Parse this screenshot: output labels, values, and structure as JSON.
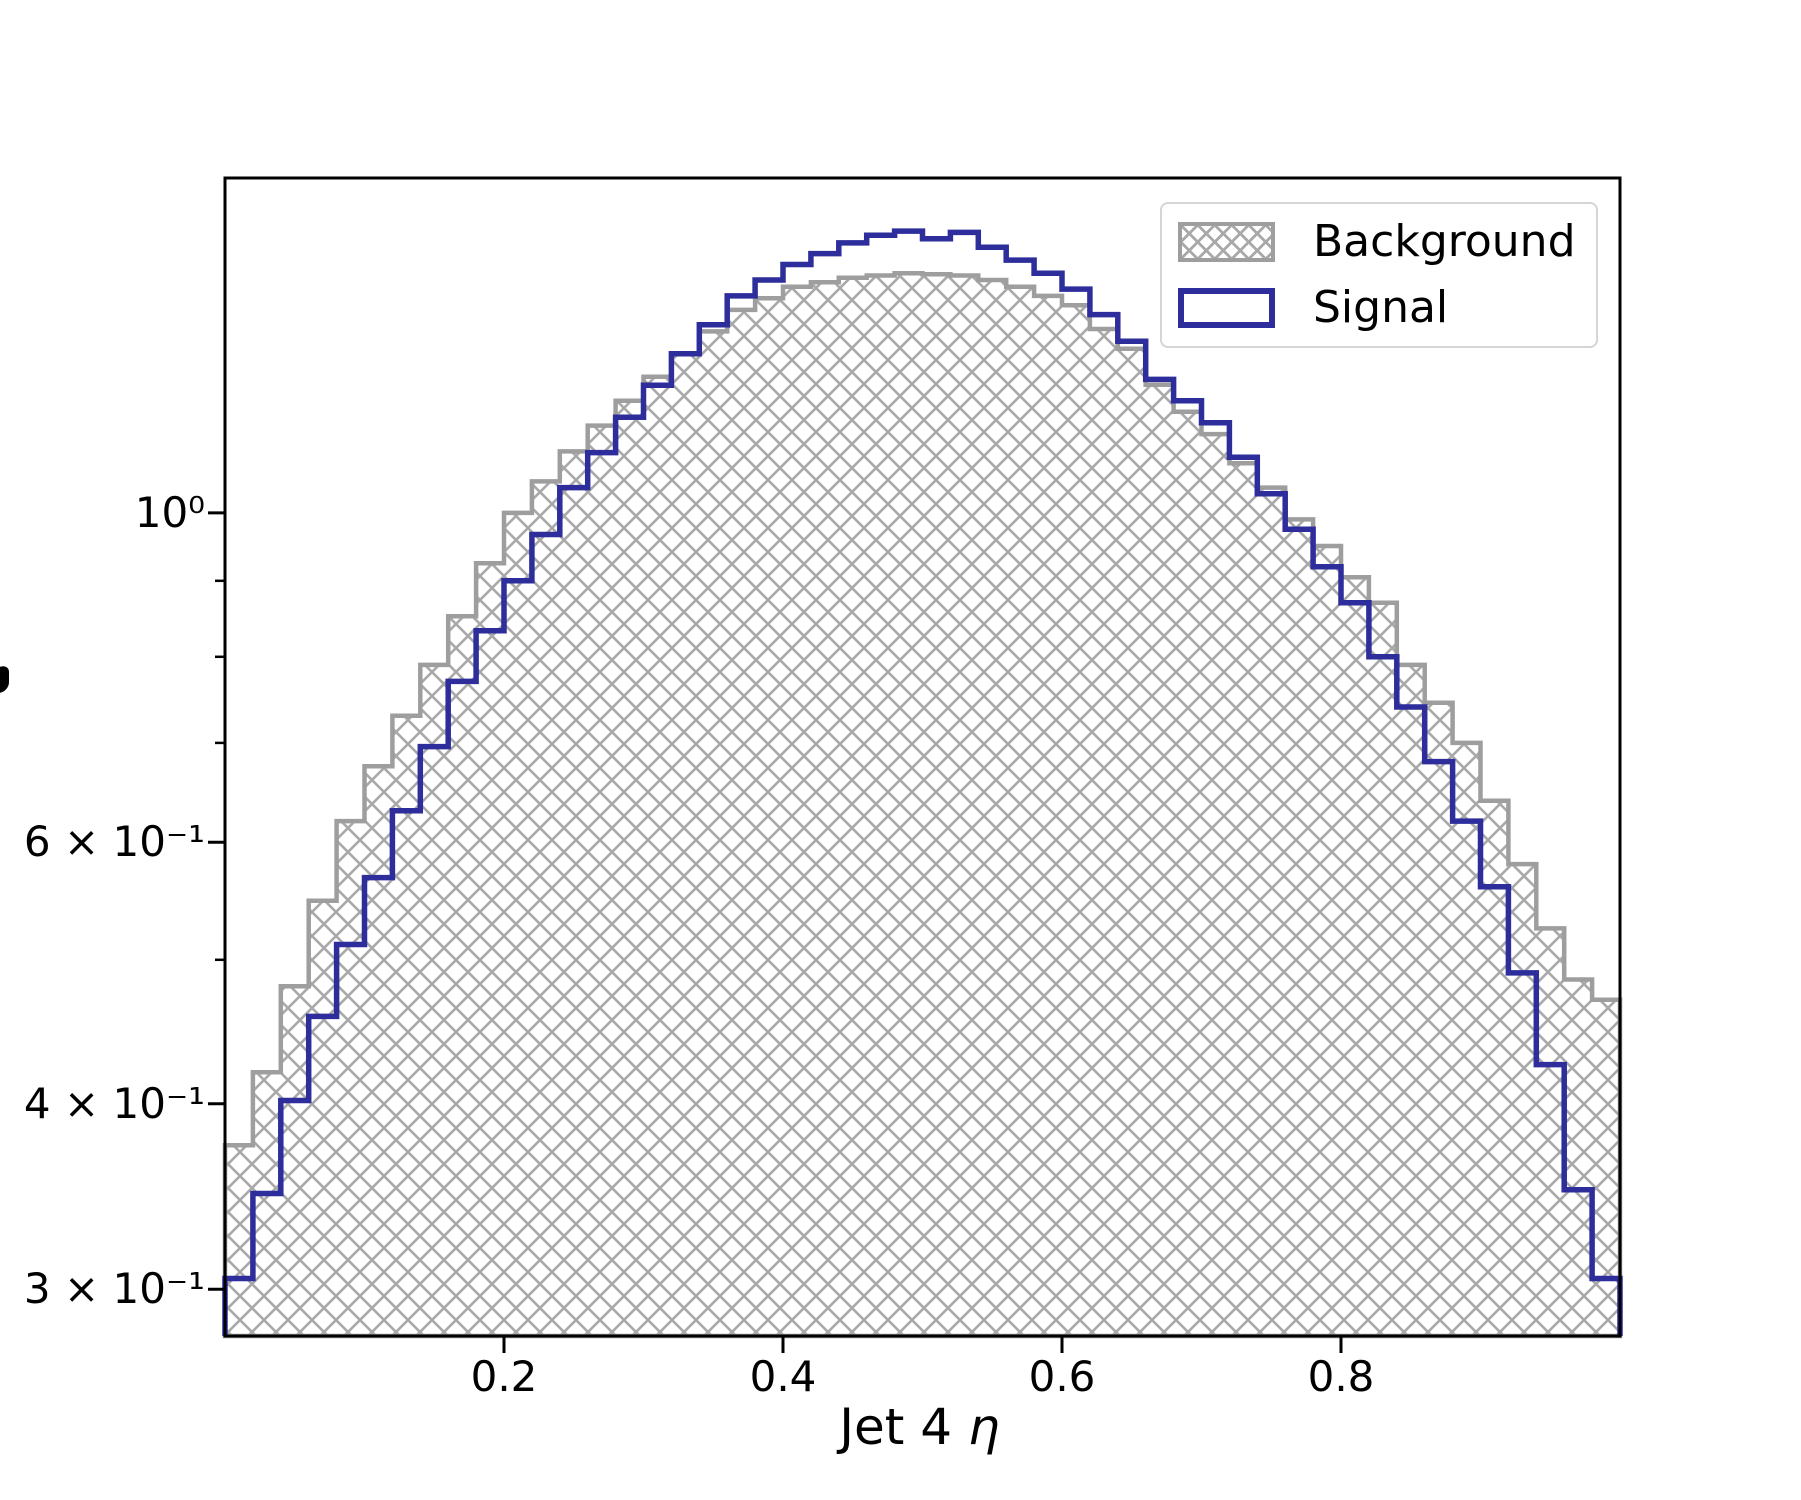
{
  "chart_data": {
    "type": "histogram",
    "title": "",
    "xlabel": "Jet 4 η",
    "xlabel_text": "Jet 4 ",
    "xlabel_symbol": "η",
    "ylabel": "",
    "yscale": "log",
    "x_range": [
      0.0,
      1.0
    ],
    "n_bins": 50,
    "bin_width": 0.02,
    "ylim": [
      0.279,
      1.681
    ],
    "grid": false,
    "xticks": [
      {
        "value": 0.2,
        "label": "0.2"
      },
      {
        "value": 0.4,
        "label": "0.4"
      },
      {
        "value": 0.6,
        "label": "0.6"
      },
      {
        "value": 0.8,
        "label": "0.8"
      }
    ],
    "yticks": [
      {
        "value": 1.0,
        "label": "10⁰"
      },
      {
        "value": 0.6,
        "label": "6 × 10⁻¹"
      },
      {
        "value": 0.4,
        "label": "4 × 10⁻¹"
      },
      {
        "value": 0.3,
        "label": "3 × 10⁻¹"
      }
    ],
    "yticks_minor": [
      0.9,
      0.8,
      0.7,
      0.5
    ],
    "series": [
      {
        "name": "Background",
        "style": "filled-crosshatch",
        "edge_color": "#9e9e9e",
        "hatch_color": "#a9a9a9",
        "hatch": "xx",
        "values": [
          0.375,
          0.42,
          0.48,
          0.548,
          0.62,
          0.675,
          0.73,
          0.79,
          0.852,
          0.925,
          1.0,
          1.05,
          1.1,
          1.145,
          1.19,
          1.235,
          1.28,
          1.325,
          1.37,
          1.395,
          1.42,
          1.43,
          1.44,
          1.445,
          1.45,
          1.448,
          1.445,
          1.435,
          1.42,
          1.4,
          1.38,
          1.33,
          1.29,
          1.22,
          1.17,
          1.13,
          1.08,
          1.04,
          0.99,
          0.95,
          0.905,
          0.87,
          0.79,
          0.745,
          0.7,
          0.64,
          0.58,
          0.525,
          0.485,
          0.47
        ]
      },
      {
        "name": "Signal",
        "style": "step",
        "edge_color": "#2d2d9c",
        "values": [
          0.305,
          0.348,
          0.402,
          0.458,
          0.512,
          0.568,
          0.63,
          0.696,
          0.77,
          0.833,
          0.9,
          0.967,
          1.04,
          1.098,
          1.16,
          1.219,
          1.28,
          1.339,
          1.4,
          1.435,
          1.47,
          1.495,
          1.52,
          1.538,
          1.548,
          1.53,
          1.545,
          1.51,
          1.48,
          1.45,
          1.415,
          1.36,
          1.305,
          1.23,
          1.19,
          1.15,
          1.09,
          1.03,
          0.975,
          0.92,
          0.87,
          0.8,
          0.74,
          0.68,
          0.62,
          0.56,
          0.49,
          0.425,
          0.35,
          0.305
        ]
      }
    ],
    "legend": {
      "position": "upper right",
      "entries": [
        "Background",
        "Signal"
      ]
    }
  }
}
